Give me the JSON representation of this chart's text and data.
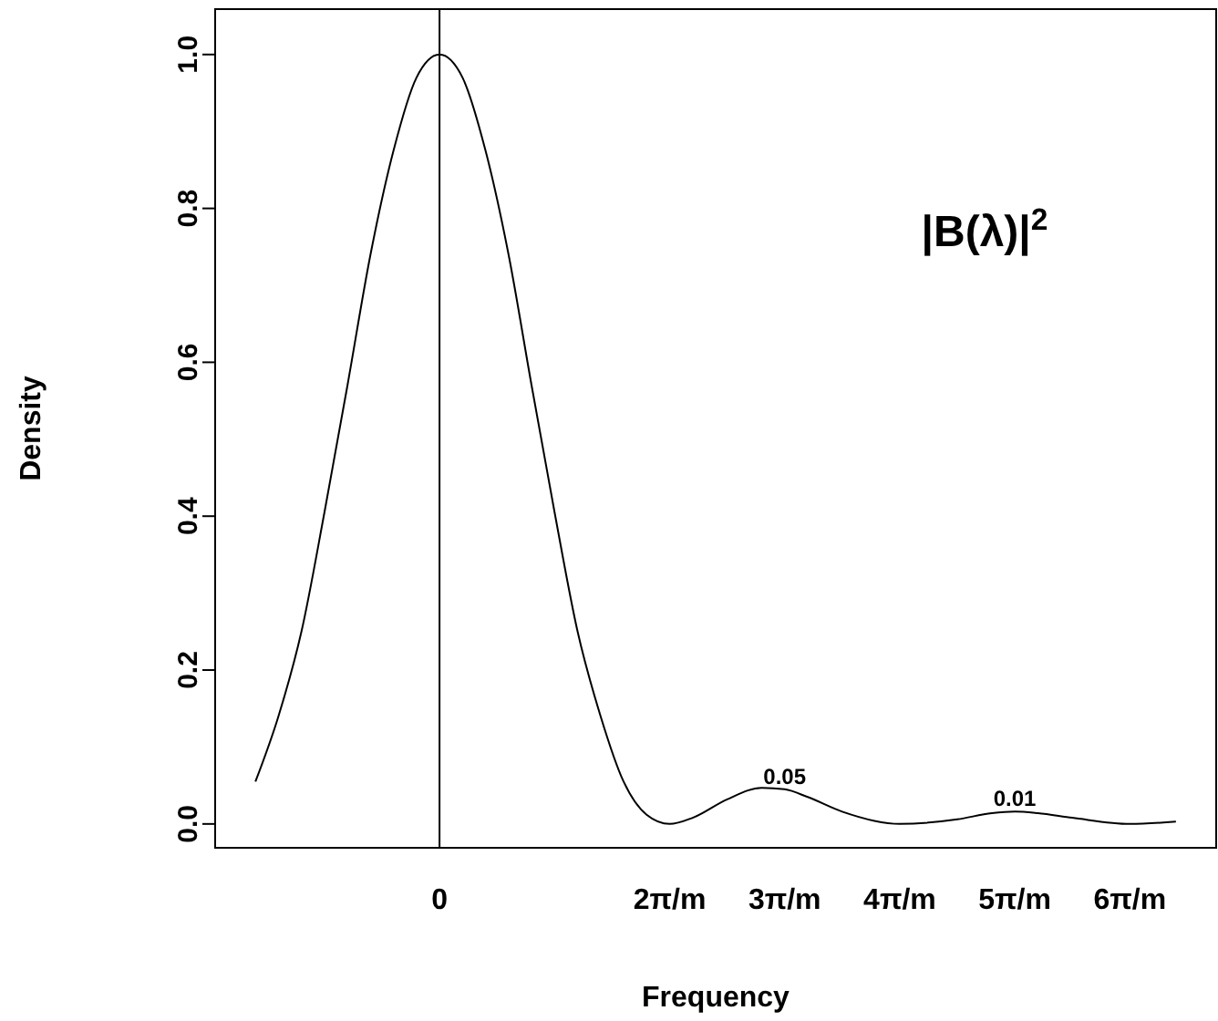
{
  "chart_data": {
    "type": "line",
    "xlabel": "Frequency",
    "ylabel": "Density",
    "x": [
      -1.6,
      -1.4,
      -1.2,
      -1.0,
      -0.8,
      -0.6,
      -0.4,
      -0.2,
      0,
      0.2,
      0.4,
      0.6,
      0.8,
      1.0,
      1.2,
      1.4,
      1.6,
      1.8,
      2.0,
      2.2,
      2.5,
      2.8,
      3.0,
      3.2,
      3.5,
      4.0,
      4.5,
      4.8,
      5.0,
      5.2,
      5.5,
      6.0,
      6.4
    ],
    "series": [
      {
        "color": "#000000",
        "values": [
          0.055,
          0.14,
          0.25,
          0.405,
          0.57,
          0.74,
          0.875,
          0.97,
          1.0,
          0.97,
          0.875,
          0.74,
          0.57,
          0.405,
          0.25,
          0.14,
          0.055,
          0.012,
          0.0,
          0.008,
          0.032,
          0.047,
          0.045,
          0.035,
          0.016,
          0.0,
          0.006,
          0.014,
          0.016,
          0.014,
          0.008,
          0.0,
          0.003
        ]
      }
    ],
    "xlim": [
      -1.95,
      6.75
    ],
    "ylim": [
      -0.031,
      1.059
    ],
    "xticks": [
      {
        "value": 0,
        "label": "0"
      },
      {
        "value": 2,
        "label": "2π/m"
      },
      {
        "value": 3,
        "label": "3π/m"
      },
      {
        "value": 4,
        "label": "4π/m"
      },
      {
        "value": 5,
        "label": "5π/m"
      },
      {
        "value": 6,
        "label": "6π/m"
      }
    ],
    "yticks": [
      {
        "value": 0,
        "label": "0.0"
      },
      {
        "value": 0.2,
        "label": "0.2"
      },
      {
        "value": 0.4,
        "label": "0.4"
      },
      {
        "value": 0.6,
        "label": "0.6"
      },
      {
        "value": 0.8,
        "label": "0.8"
      },
      {
        "value": 1.0,
        "label": "1.0"
      }
    ],
    "ref_lines": [
      {
        "axis": "x",
        "value": 0,
        "color": "#000000"
      }
    ],
    "annotations": [
      {
        "text": "0.05",
        "x": 3,
        "y": 0.045
      },
      {
        "text": "0.01",
        "x": 5,
        "y": 0.016
      },
      "|B(λ)|$^{2}$"
    ],
    "grid": false,
    "marker": "none",
    "line_style": "solid"
  }
}
